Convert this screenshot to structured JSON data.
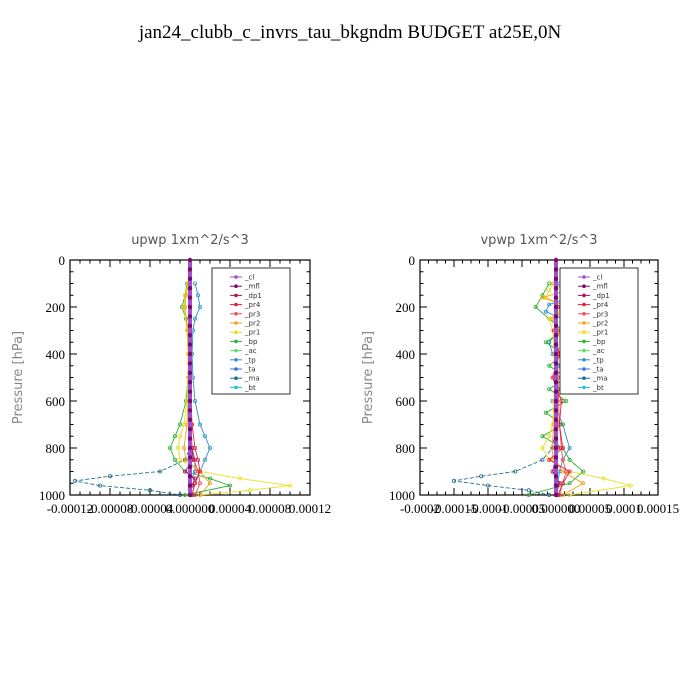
{
  "page": {
    "title": "jan24_clubb_c_invrs_tau_bkgndm  BUDGET at25E,0N"
  },
  "legend_entries": [
    "_cl",
    "_mfl",
    "_dp1",
    "_pr4",
    "_pr3",
    "_pr2",
    "_pr1",
    "_bp",
    "_ac",
    "_tp",
    "_ta",
    "_ma",
    "_bt"
  ],
  "series_colors": {
    "_cl": "#a050c8",
    "_mfl": "#7a0a6a",
    "_dp1": "#b01050",
    "_pr4": "#e0203c",
    "_pr3": "#f05050",
    "_pr2": "#f0a020",
    "_pr1": "#e8e020",
    "_bp": "#30b030",
    "_ac": "#60e060",
    "_tp": "#3090d0",
    "_ta": "#4070e0",
    "_ma": "#207090",
    "_bt": "#20c0e0"
  },
  "chart_data": [
    {
      "type": "line",
      "title": "upwp   1xm^2/s^3",
      "ylabel": "Pressure [hPa]",
      "xlim": [
        -0.00012,
        0.00012
      ],
      "ylim": [
        1000,
        0
      ],
      "x_ticks": [
        "-0.00012",
        "-0.00008",
        "-0.00004",
        "0.000000",
        "0.00004",
        "0.00008",
        "0.00012"
      ],
      "x_tick_values": [
        -0.00012,
        -8e-05,
        -4e-05,
        0,
        4e-05,
        8e-05,
        0.00012
      ],
      "y_ticks": [
        "0",
        "200",
        "400",
        "600",
        "800",
        "1000"
      ],
      "y_tick_values": [
        0,
        200,
        400,
        600,
        800,
        1000
      ],
      "legend_position": "top-right",
      "series": [
        {
          "key": "_bt",
          "p": [
            100,
            150,
            200,
            300,
            400,
            500,
            600,
            700,
            800,
            850,
            900,
            950,
            1000
          ],
          "x": [
            0,
            0,
            0,
            0,
            0,
            0,
            0,
            0,
            0,
            0,
            0,
            0,
            0
          ]
        },
        {
          "key": "_ma",
          "p": [
            100,
            300,
            500,
            700,
            800,
            850,
            900,
            920,
            940,
            960,
            980,
            1000
          ],
          "x": [
            0,
            0,
            0,
            0,
            0,
            -5e-06,
            -3e-05,
            -8e-05,
            -0.000115,
            -9e-05,
            -4e-05,
            -1e-05
          ]
        },
        {
          "key": "_ta",
          "p": [
            100,
            300,
            500,
            700,
            800,
            850,
            900,
            950,
            1000
          ],
          "x": [
            0,
            0,
            0,
            0,
            2e-06,
            5e-06,
            5e-06,
            0,
            0
          ]
        },
        {
          "key": "_tp",
          "p": [
            100,
            150,
            200,
            250,
            300,
            400,
            500,
            600,
            700,
            750,
            800,
            850,
            900,
            950,
            1000
          ],
          "x": [
            5e-06,
            8e-06,
            1e-05,
            5e-06,
            3e-06,
            2e-06,
            3e-06,
            5e-06,
            1e-05,
            1.5e-05,
            2e-05,
            1.5e-05,
            1e-05,
            5e-06,
            2e-06
          ]
        },
        {
          "key": "_ac",
          "p": [
            100,
            300,
            500,
            700,
            800,
            900,
            950,
            1000
          ],
          "x": [
            0,
            0,
            0,
            0,
            0,
            0,
            0,
            0
          ]
        },
        {
          "key": "_bp",
          "p": [
            100,
            150,
            200,
            250,
            300,
            400,
            500,
            600,
            700,
            750,
            800,
            850,
            900,
            930,
            960,
            1000
          ],
          "x": [
            -3e-06,
            -5e-06,
            -8e-06,
            -4e-06,
            -2e-06,
            -2e-06,
            -2e-06,
            -4e-06,
            -1e-05,
            -1.5e-05,
            -2e-05,
            -1.5e-05,
            -5e-06,
            2e-05,
            4e-05,
            -5e-06
          ]
        },
        {
          "key": "_pr1",
          "p": [
            100,
            150,
            200,
            300,
            400,
            500,
            600,
            700,
            750,
            800,
            850,
            900,
            930,
            960,
            980,
            1000
          ],
          "x": [
            -2e-06,
            -5e-06,
            -6e-06,
            -3e-06,
            -2e-06,
            -2e-06,
            -3e-06,
            -6e-06,
            -1e-05,
            -1.2e-05,
            -1e-05,
            1e-05,
            5e-05,
            0.0001,
            6e-05,
            1e-05
          ]
        },
        {
          "key": "_pr2",
          "p": [
            100,
            150,
            200,
            300,
            500,
            700,
            800,
            850,
            900,
            950,
            1000
          ],
          "x": [
            -1e-06,
            -4e-06,
            -5e-06,
            -2e-06,
            -1e-06,
            -3e-06,
            -6e-06,
            -4e-06,
            1e-05,
            2e-05,
            1e-05
          ]
        },
        {
          "key": "_pr3",
          "p": [
            100,
            300,
            500,
            700,
            800,
            850,
            900,
            950,
            1000
          ],
          "x": [
            0,
            0,
            0,
            1e-06,
            2e-06,
            4e-06,
            8e-06,
            1e-05,
            5e-06
          ]
        },
        {
          "key": "_pr4",
          "p": [
            100,
            300,
            500,
            700,
            800,
            850,
            900,
            950,
            1000
          ],
          "x": [
            0,
            0,
            0,
            2e-06,
            5e-06,
            8e-06,
            1e-05,
            5e-06,
            2e-06
          ]
        },
        {
          "key": "_dp1",
          "p": [
            100,
            300,
            500,
            700,
            800,
            850,
            900,
            930,
            960,
            1000
          ],
          "x": [
            0,
            0,
            0,
            0,
            2e-06,
            3e-06,
            -5e-06,
            5e-06,
            2e-06,
            0
          ]
        },
        {
          "key": "_mfl",
          "p": [
            100,
            300,
            500,
            700,
            800,
            900,
            950,
            1000
          ],
          "x": [
            0,
            0,
            0,
            0,
            0,
            0,
            0,
            0
          ]
        },
        {
          "key": "_cl",
          "p": [
            0,
            1000
          ],
          "x": [
            0,
            0
          ]
        }
      ]
    },
    {
      "type": "line",
      "title": "vpwp   1xm^2/s^3",
      "ylabel": "Pressure [hPa]",
      "xlim": [
        -0.0002,
        0.00015
      ],
      "ylim": [
        1000,
        0
      ],
      "x_ticks": [
        "-0.0002",
        "-0.00015",
        "-0.0001",
        "-0.00005",
        "0.000000",
        "0.00005",
        "0.0001",
        "0.00015"
      ],
      "x_tick_values": [
        -0.0002,
        -0.00015,
        -0.0001,
        -5e-05,
        0,
        5e-05,
        0.0001,
        0.00015
      ],
      "y_ticks": [
        "0",
        "200",
        "400",
        "600",
        "800",
        "1000"
      ],
      "y_tick_values": [
        0,
        200,
        400,
        600,
        800,
        1000
      ],
      "legend_position": "top-right",
      "series": [
        {
          "key": "_bt",
          "p": [
            100,
            200,
            300,
            400,
            500,
            600,
            700,
            800,
            900,
            1000
          ],
          "x": [
            0,
            0,
            0,
            0,
            0,
            0,
            0,
            0,
            0,
            0
          ]
        },
        {
          "key": "_ma",
          "p": [
            100,
            300,
            500,
            700,
            800,
            850,
            900,
            920,
            940,
            960,
            980,
            1000
          ],
          "x": [
            0,
            0,
            0,
            0,
            -5e-06,
            -2e-05,
            -6e-05,
            -0.00011,
            -0.00015,
            -0.0001,
            -4e-05,
            -1e-05
          ]
        },
        {
          "key": "_ta",
          "p": [
            100,
            300,
            500,
            700,
            800,
            900,
            950,
            1000
          ],
          "x": [
            0,
            0,
            0,
            0,
            0,
            0,
            0,
            0
          ]
        },
        {
          "key": "_tp",
          "p": [
            100,
            130,
            160,
            190,
            220,
            250,
            300,
            350,
            400,
            450,
            500,
            550,
            600,
            700,
            800,
            850,
            900,
            950,
            1000
          ],
          "x": [
            5e-06,
            1.5e-05,
            2e-05,
            -1e-05,
            -1.5e-05,
            1e-05,
            5e-06,
            -1e-05,
            -5e-06,
            5e-06,
            1e-05,
            5e-06,
            -5e-06,
            1e-05,
            2e-05,
            1e-05,
            5e-06,
            3e-06,
            1e-06
          ]
        },
        {
          "key": "_ac",
          "p": [
            100,
            300,
            500,
            700,
            900,
            1000
          ],
          "x": [
            0,
            0,
            0,
            0,
            0,
            0
          ]
        },
        {
          "key": "_bp",
          "p": [
            100,
            150,
            200,
            250,
            300,
            350,
            400,
            450,
            500,
            550,
            600,
            650,
            700,
            750,
            800,
            850,
            900,
            950,
            1000
          ],
          "x": [
            -1e-05,
            -2e-05,
            -3e-05,
            -1e-05,
            1e-05,
            -1.5e-05,
            1e-05,
            -1e-05,
            1.5e-05,
            -1e-05,
            1.5e-05,
            -1.5e-05,
            1e-05,
            -2e-05,
            1e-05,
            2e-05,
            4e-05,
            2e-05,
            -4e-05
          ]
        },
        {
          "key": "_pr1",
          "p": [
            100,
            130,
            160,
            190,
            220,
            250,
            300,
            400,
            500,
            600,
            700,
            750,
            800,
            850,
            900,
            930,
            960,
            1000
          ],
          "x": [
            -5e-06,
            -1e-05,
            -1.5e-05,
            1e-05,
            5e-06,
            -1e-05,
            -5e-06,
            -2e-06,
            -2e-06,
            -3e-06,
            -5e-06,
            -1e-05,
            -2e-05,
            -1e-05,
            2e-05,
            7e-05,
            0.00011,
            2e-05
          ]
        },
        {
          "key": "_pr2",
          "p": [
            100,
            130,
            160,
            200,
            250,
            300,
            400,
            500,
            700,
            800,
            850,
            900,
            950,
            1000
          ],
          "x": [
            -4e-06,
            1.5e-05,
            -2e-05,
            2e-05,
            -5e-06,
            5e-06,
            -2e-06,
            -1e-06,
            -3e-06,
            -6e-06,
            -4e-06,
            1e-05,
            4e-05,
            1e-05
          ]
        },
        {
          "key": "_pr3",
          "p": [
            100,
            300,
            500,
            700,
            800,
            850,
            900,
            950,
            1000
          ],
          "x": [
            0,
            2e-06,
            3e-06,
            5e-06,
            8e-06,
            1e-05,
            1.5e-05,
            1e-05,
            5e-06
          ]
        },
        {
          "key": "_pr4",
          "p": [
            100,
            200,
            300,
            400,
            500,
            600,
            700,
            800,
            850,
            900,
            950,
            1000
          ],
          "x": [
            0,
            3e-06,
            -3e-06,
            5e-06,
            -5e-06,
            8e-06,
            5e-06,
            1e-05,
            -1e-05,
            2e-05,
            1e-05,
            3e-06
          ]
        },
        {
          "key": "_dp1",
          "p": [
            100,
            300,
            500,
            700,
            800,
            900,
            950,
            1000
          ],
          "x": [
            0,
            0,
            0,
            0,
            3e-06,
            -5e-06,
            5e-06,
            0
          ]
        },
        {
          "key": "_mfl",
          "p": [
            100,
            300,
            500,
            700,
            900,
            1000
          ],
          "x": [
            0,
            0,
            0,
            0,
            0,
            0
          ]
        },
        {
          "key": "_cl",
          "p": [
            0,
            1000
          ],
          "x": [
            0,
            0
          ]
        }
      ]
    }
  ]
}
